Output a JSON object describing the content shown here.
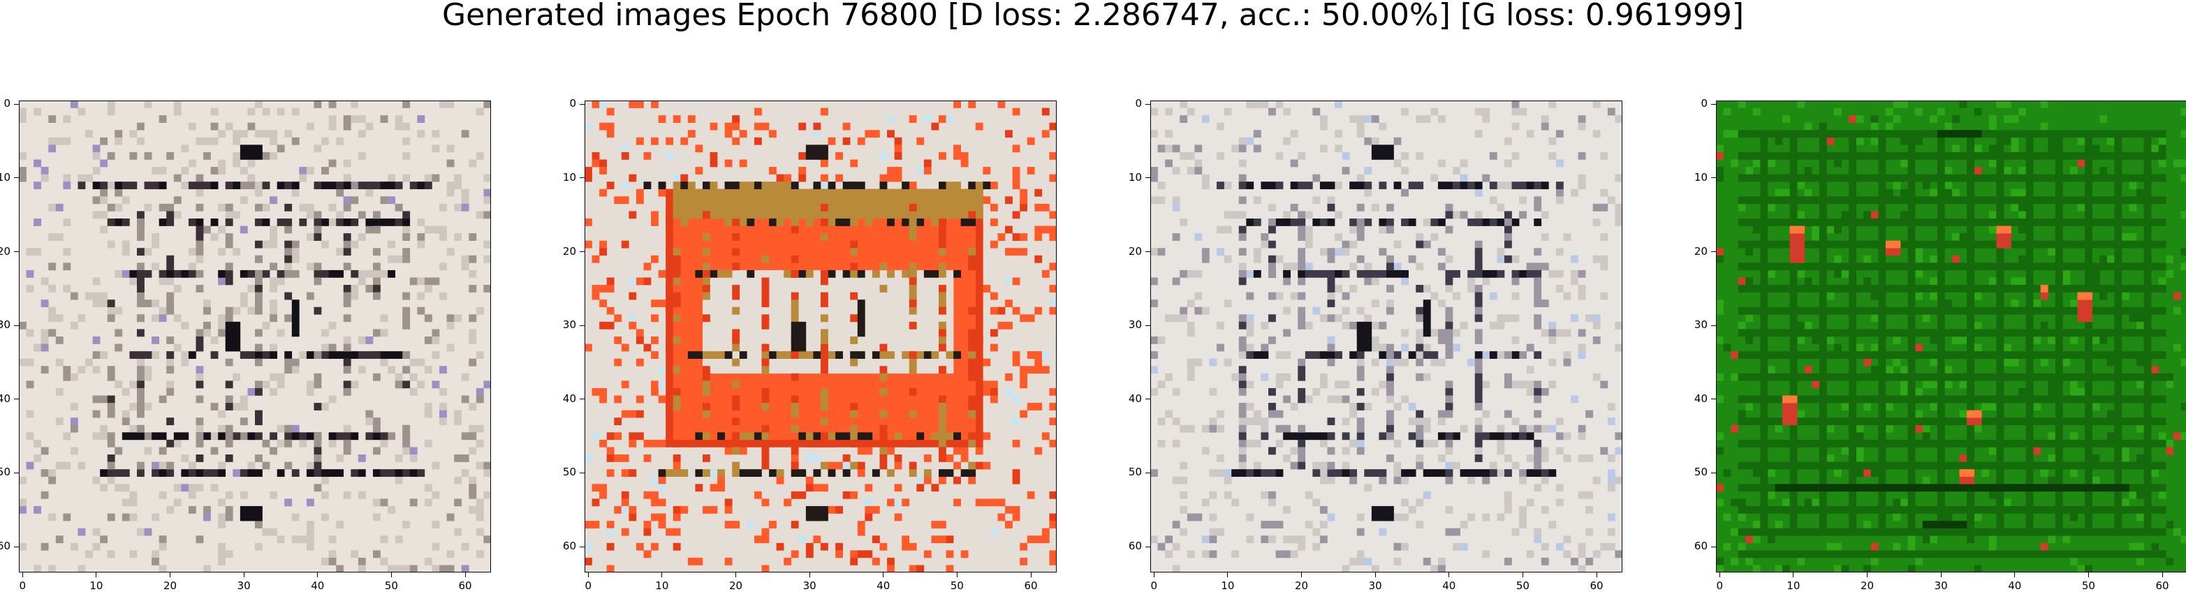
{
  "figure": {
    "title": "Generated images Epoch 76800 [D loss: 2.286747, acc.: 50.00%] [G loss: 0.961999]"
  },
  "axes": {
    "x_ticks": [
      0,
      10,
      20,
      30,
      40,
      50,
      60
    ],
    "y_ticks": [
      0,
      10,
      20,
      30,
      40,
      50,
      60
    ],
    "extent": [
      -0.5,
      63.5
    ]
  },
  "panels": [
    {
      "name": "sample-1",
      "palette": [
        "#e9e3dc",
        "#cfc6be",
        "#9d928c",
        "#3b3036",
        "#141018"
      ],
      "accent": "#9c8fc2"
    },
    {
      "name": "sample-2",
      "palette": [
        "#e4ded6",
        "#ff5a2a",
        "#e43d18",
        "#b88a3a",
        "#221a18"
      ],
      "accent": "#c8e4f0"
    },
    {
      "name": "sample-3",
      "palette": [
        "#e8e4df",
        "#cdc8c6",
        "#9a95a0",
        "#3d3a4a",
        "#15141c"
      ],
      "accent": "#b9c9e6"
    },
    {
      "name": "sample-4",
      "palette": [
        "#1f8a12",
        "#2ca817",
        "#156a0b",
        "#0b3b06",
        "#ff7a3a"
      ],
      "accent": "#d33b2a"
    }
  ]
}
